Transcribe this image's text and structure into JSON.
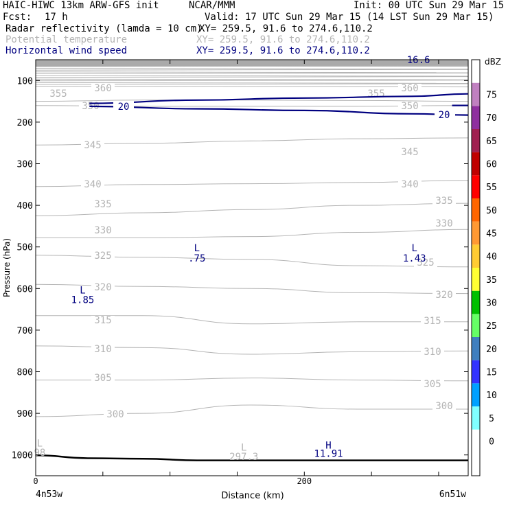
{
  "header": {
    "model": "HAIC-HIWC 13km ARW-GFS init",
    "org": "NCAR/MMM",
    "init": "Init: 00 UTC Sun 29 Mar 15",
    "fcst_label": "Fcst:",
    "fcst_value": "17 h",
    "valid": "Valid: 17 UTC Sun 29 Mar 15 (14 LST Sun 29 Mar 15)",
    "fields": [
      {
        "name": "Radar reflectivity (lamda = 10 cm)",
        "xy": "XY= 259.5, 91.6 to 274.6,110.2",
        "color": "#000000"
      },
      {
        "name": "Potential temperature",
        "xy": "XY= 259.5, 91.6 to 274.6,110.2",
        "color": "#b4b4b4"
      },
      {
        "name": "Horizontal wind speed",
        "xy": "XY= 259.5, 91.6 to 274.6,110.2",
        "color": "#000080"
      }
    ]
  },
  "chart_data": {
    "type": "contour",
    "xlabel": "Distance (km)",
    "ylabel": "Pressure (hPa)",
    "x_tick": "200",
    "x_start_label": "4n53w",
    "x_end_label": "6n51w",
    "xlim": [
      0,
      322
    ],
    "ylim": [
      1050,
      50
    ],
    "yticks": [
      100,
      200,
      300,
      400,
      500,
      600,
      700,
      800,
      900,
      1000
    ],
    "ground_pressure": {
      "x": [
        0,
        40,
        80,
        120,
        160,
        200,
        240,
        280,
        322
      ],
      "p": [
        1001,
        1008,
        1009,
        1013,
        1013,
        1013,
        1013,
        1013,
        1013
      ]
    },
    "theta_contours": [
      {
        "value": 355,
        "x": [
          0,
          80,
          160,
          240,
          322
        ],
        "p": [
          150,
          147,
          147,
          148,
          150
        ]
      },
      {
        "value": 350,
        "x": [
          0,
          80,
          160,
          240,
          322
        ],
        "p": [
          160,
          162,
          162,
          162,
          160
        ]
      },
      {
        "value": 345,
        "x": [
          0,
          80,
          160,
          240,
          322
        ],
        "p": [
          255,
          251,
          245,
          240,
          238
        ]
      },
      {
        "value": 340,
        "x": [
          0,
          80,
          160,
          240,
          322
        ],
        "p": [
          355,
          350,
          348,
          345,
          340
        ]
      },
      {
        "value": 335,
        "x": [
          0,
          80,
          160,
          240,
          322
        ],
        "p": [
          425,
          418,
          410,
          400,
          395
        ]
      },
      {
        "value": 330,
        "x": [
          0,
          80,
          160,
          240,
          322
        ],
        "p": [
          478,
          478,
          475,
          465,
          458
        ]
      },
      {
        "value": 325,
        "x": [
          0,
          80,
          160,
          240,
          322
        ],
        "p": [
          520,
          525,
          530,
          545,
          548
        ]
      },
      {
        "value": 320,
        "x": [
          0,
          80,
          160,
          240,
          322
        ],
        "p": [
          590,
          595,
          600,
          610,
          612
        ]
      },
      {
        "value": 315,
        "x": [
          0,
          80,
          160,
          240,
          322
        ],
        "p": [
          665,
          665,
          685,
          680,
          680
        ]
      },
      {
        "value": 310,
        "x": [
          0,
          80,
          160,
          240,
          322
        ],
        "p": [
          738,
          742,
          758,
          752,
          750
        ]
      },
      {
        "value": 305,
        "x": [
          0,
          80,
          160,
          240,
          322
        ],
        "p": [
          820,
          820,
          815,
          820,
          822
        ]
      },
      {
        "value": 300,
        "x": [
          0,
          80,
          160,
          240,
          322
        ],
        "p": [
          908,
          900,
          880,
          890,
          890
        ]
      }
    ],
    "theta_labels": [
      "360",
      "355",
      "350",
      "345",
      "340",
      "335",
      "330",
      "325",
      "320",
      "315",
      "310",
      "305",
      "300"
    ],
    "wind_speed_contour": {
      "value": 20,
      "upper": {
        "x": [
          40,
          120,
          200,
          280,
          322
        ],
        "p": [
          155,
          147,
          142,
          138,
          132
        ]
      },
      "lower": {
        "x": [
          40,
          120,
          200,
          280,
          322
        ],
        "p": [
          162,
          168,
          172,
          180,
          183
        ]
      }
    },
    "annotations": [
      {
        "text": "16.6",
        "type": "max",
        "x": 285,
        "p": 58
      },
      {
        "text": "L",
        "type": "low",
        "x": 35,
        "p": 612
      },
      {
        "text": "1.85",
        "type": "value",
        "x": 35,
        "p": 635
      },
      {
        "text": "L",
        "type": "low",
        "x": 120,
        "p": 510
      },
      {
        "text": ".75",
        "type": "value",
        "x": 120,
        "p": 535
      },
      {
        "text": "L",
        "type": "low",
        "x": 282,
        "p": 510
      },
      {
        "text": "1.43",
        "type": "value",
        "x": 282,
        "p": 535
      },
      {
        "text": "H",
        "type": "high",
        "x": 218,
        "p": 985
      },
      {
        "text": "11.91",
        "type": "value",
        "x": 218,
        "p": 1005
      },
      {
        "text": "L",
        "type": "theta-low",
        "x": 155,
        "p": 990
      },
      {
        "text": "297.3",
        "type": "theta-value",
        "x": 155,
        "p": 1012
      },
      {
        "text": "L",
        "type": "theta-low",
        "x": 3,
        "p": 980
      },
      {
        "text": "98",
        "type": "theta-value",
        "x": 3,
        "p": 1002
      }
    ],
    "colorbar": {
      "title": "dBZ",
      "levels": [
        "0",
        "5",
        "10",
        "15",
        "20",
        "25",
        "30",
        "35",
        "40",
        "45",
        "50",
        "55",
        "60",
        "65",
        "70",
        "75"
      ],
      "colors": [
        "#ffffff",
        "#ffffff",
        "#80ffff",
        "#00a0ff",
        "#3333ff",
        "#3f7fbf",
        "#66ff66",
        "#00c000",
        "#ffff33",
        "#ffcc33",
        "#ff9933",
        "#ff6600",
        "#ff0000",
        "#c00000",
        "#a02050",
        "#8f2f9f",
        "#c080c0",
        "#ffffff"
      ]
    }
  }
}
